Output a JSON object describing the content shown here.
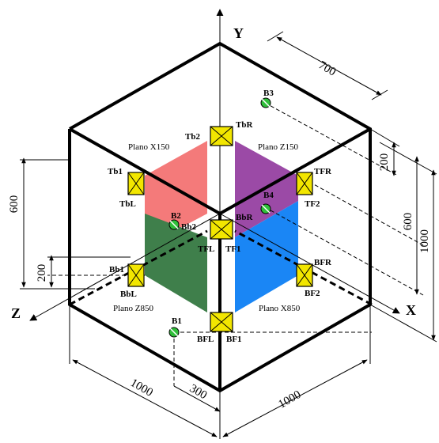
{
  "axes": {
    "x": "X",
    "y": "Y",
    "z": "Z"
  },
  "planes": {
    "x150": "Plano X150",
    "z150": "Plano Z150",
    "z850": "Plano Z850",
    "x850": "Plano X850"
  },
  "colors": {
    "plane_x150": "#f47a7a",
    "plane_z150": "#9b4aa6",
    "plane_z850": "#3f7f4b",
    "plane_x850": "#1a86f5",
    "sensor": "#f2e600",
    "ball": "#2fbf3a"
  },
  "sensors": {
    "tb2": "Tb2",
    "tbr": "TbR",
    "tb1": "Tb1",
    "tbl": "TbL",
    "tfr": "TFR",
    "tf2": "TF2",
    "bb2": "Bb2",
    "bbr": "BbR",
    "tfl": "TFL",
    "tf1": "TF1",
    "bb1": "Bb1",
    "bbl": "BbL",
    "bfr": "BFR",
    "bf2": "BF2",
    "bfl": "BFL",
    "bf1": "BF1"
  },
  "balls": {
    "b1": "B1",
    "b2": "B2",
    "b3": "B3",
    "b4": "B4"
  },
  "dimensions": {
    "top_right": "700",
    "right_200": "200",
    "right_600": "600",
    "right_1000": "1000",
    "left_600": "600",
    "left_200": "200",
    "bottom_left": "1000",
    "bottom_right": "1000",
    "bottom_300": "300"
  }
}
